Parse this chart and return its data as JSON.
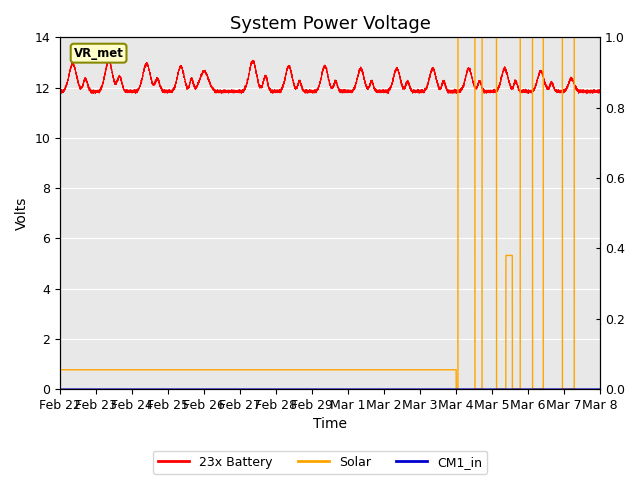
{
  "title": "System Power Voltage",
  "xlabel": "Time",
  "ylabel": "Volts",
  "background_color": "#e8e8e8",
  "ylim_left": [
    0,
    14
  ],
  "ylim_right": [
    0.0,
    1.0
  ],
  "yticks_left": [
    0,
    2,
    4,
    6,
    8,
    10,
    12,
    14
  ],
  "yticks_right": [
    0.0,
    0.2,
    0.4,
    0.6,
    0.8,
    1.0
  ],
  "x_tick_labels": [
    "Feb 22",
    "Feb 23",
    "Feb 24",
    "Feb 25",
    "Feb 26",
    "Feb 27",
    "Feb 28",
    "Feb 29",
    "Mar 1",
    "Mar 2",
    "Mar 3",
    "Mar 4",
    "Mar 5",
    "Mar 6",
    "Mar 7",
    "Mar 8"
  ],
  "annotation_text": "VR_met",
  "battery_color": "#ff0000",
  "solar_color": "#ffa500",
  "cm1_color": "#0000cc",
  "legend_labels": [
    "23x Battery",
    "Solar",
    "CM1_in"
  ],
  "title_fontsize": 13,
  "axis_fontsize": 10,
  "n_days": 15
}
